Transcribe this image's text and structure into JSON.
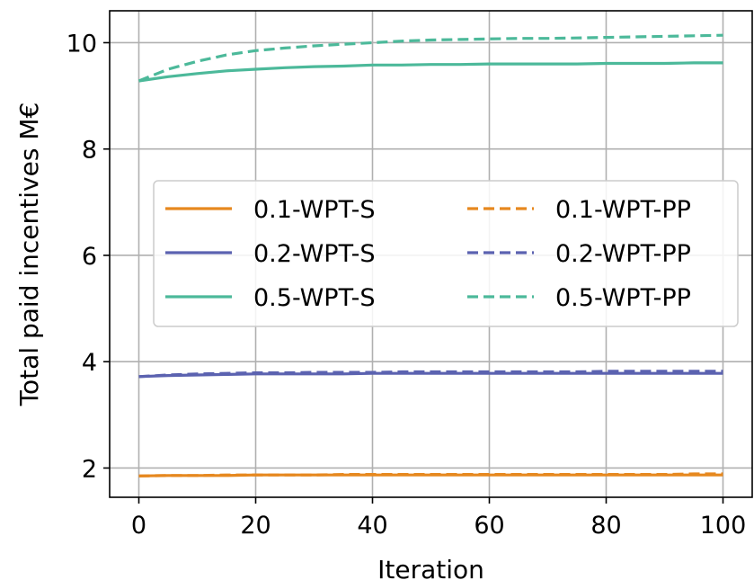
{
  "chart_data": {
    "type": "line",
    "xlabel": "Iteration",
    "ylabel": "Total paid incentives M€",
    "xlim": [
      -5,
      105
    ],
    "ylim": [
      1.45,
      10.6
    ],
    "xticks": [
      0,
      20,
      40,
      60,
      80,
      100
    ],
    "yticks": [
      2,
      4,
      6,
      8,
      10
    ],
    "grid": true,
    "legend": {
      "placement": "center",
      "columns": 2
    },
    "x": [
      0,
      5,
      10,
      15,
      20,
      25,
      30,
      35,
      40,
      45,
      50,
      55,
      60,
      65,
      70,
      75,
      80,
      85,
      90,
      95,
      100
    ],
    "series": [
      {
        "name": "0.1-WPT-S",
        "color": "#e6881f",
        "dash": "solid",
        "values": [
          1.85,
          1.86,
          1.86,
          1.86,
          1.87,
          1.87,
          1.87,
          1.87,
          1.87,
          1.87,
          1.87,
          1.87,
          1.87,
          1.87,
          1.87,
          1.87,
          1.87,
          1.87,
          1.87,
          1.87,
          1.87
        ]
      },
      {
        "name": "0.2-WPT-S",
        "color": "#5b62b0",
        "dash": "solid",
        "values": [
          3.72,
          3.74,
          3.75,
          3.76,
          3.77,
          3.77,
          3.77,
          3.77,
          3.78,
          3.78,
          3.78,
          3.78,
          3.78,
          3.78,
          3.78,
          3.78,
          3.78,
          3.78,
          3.78,
          3.78,
          3.78
        ]
      },
      {
        "name": "0.5-WPT-S",
        "color": "#4cb99a",
        "dash": "solid",
        "values": [
          9.28,
          9.36,
          9.42,
          9.47,
          9.5,
          9.53,
          9.55,
          9.56,
          9.58,
          9.58,
          9.59,
          9.59,
          9.6,
          9.6,
          9.6,
          9.6,
          9.61,
          9.61,
          9.61,
          9.62,
          9.62
        ]
      },
      {
        "name": "0.1-WPT-PP",
        "color": "#e6881f",
        "dash": "dashed",
        "values": [
          1.85,
          1.86,
          1.86,
          1.87,
          1.87,
          1.87,
          1.87,
          1.88,
          1.88,
          1.88,
          1.88,
          1.88,
          1.88,
          1.88,
          1.88,
          1.88,
          1.88,
          1.88,
          1.88,
          1.89,
          1.89
        ]
      },
      {
        "name": "0.2-WPT-PP",
        "color": "#5b62b0",
        "dash": "dashed",
        "values": [
          3.72,
          3.75,
          3.77,
          3.78,
          3.79,
          3.79,
          3.8,
          3.8,
          3.8,
          3.81,
          3.81,
          3.81,
          3.81,
          3.81,
          3.81,
          3.81,
          3.82,
          3.82,
          3.82,
          3.82,
          3.82
        ]
      },
      {
        "name": "0.5-WPT-PP",
        "color": "#4cb99a",
        "dash": "dashed",
        "values": [
          9.28,
          9.5,
          9.65,
          9.77,
          9.85,
          9.9,
          9.94,
          9.97,
          10.0,
          10.03,
          10.05,
          10.06,
          10.07,
          10.08,
          10.08,
          10.09,
          10.1,
          10.11,
          10.12,
          10.13,
          10.14
        ]
      }
    ]
  }
}
